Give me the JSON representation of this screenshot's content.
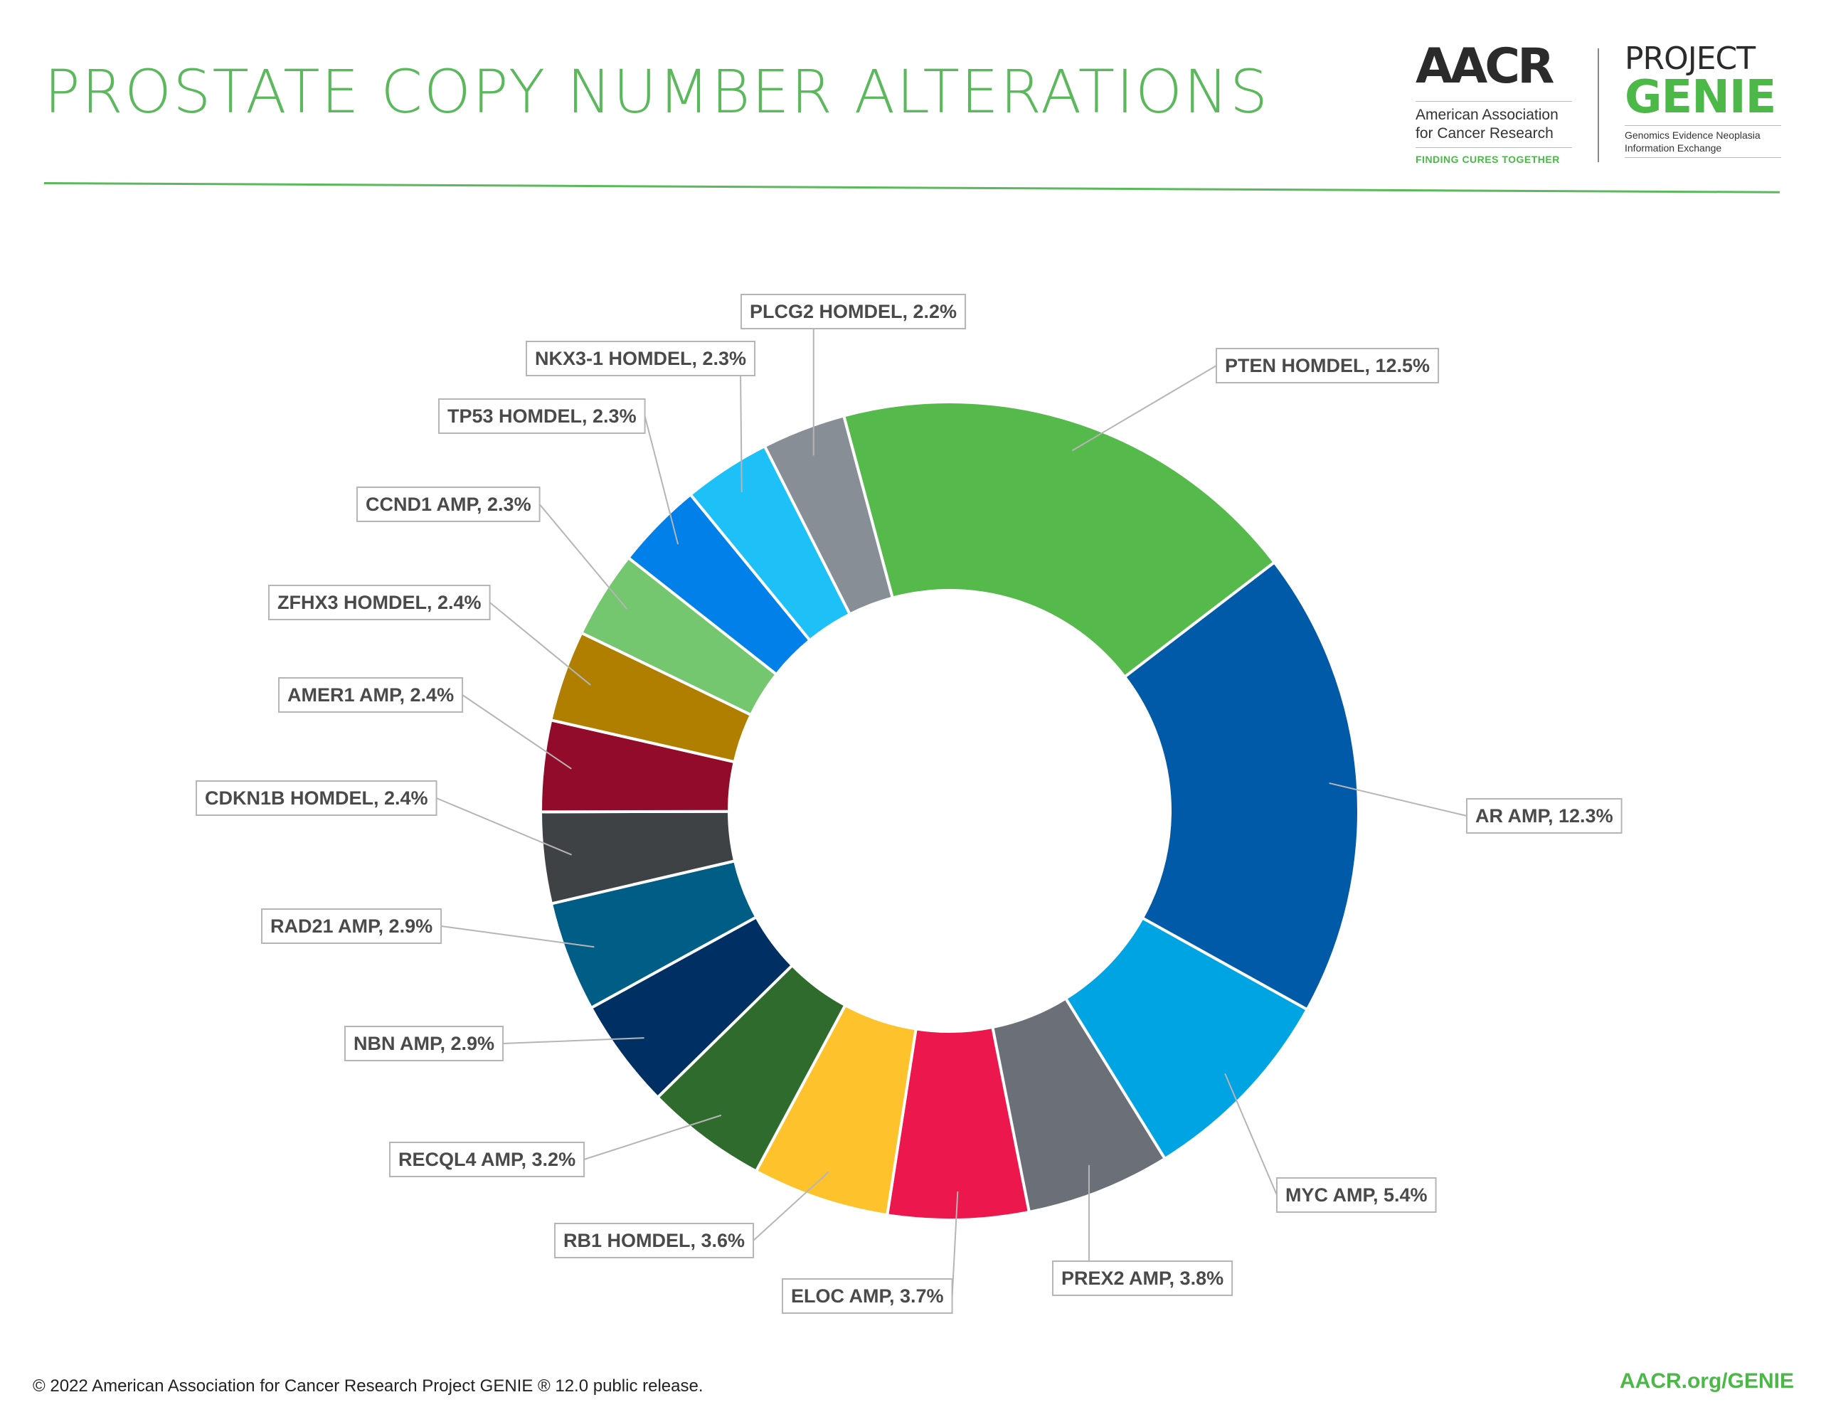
{
  "title": "PROSTATE COPY NUMBER ALTERATIONS",
  "logos": {
    "aacr": {
      "mark": "AACR",
      "name_line1": "American Association",
      "name_line2": "for Cancer Research",
      "tagline": "FINDING CURES TOGETHER"
    },
    "genie": {
      "project": "PROJECT",
      "word": "GENIE",
      "sub_line1": "Genomics Evidence Neoplasia",
      "sub_line2": "Information Exchange"
    }
  },
  "footer": {
    "copyright": "© 2022 American Association for Cancer Research Project GENIE ® 12.0 public release.",
    "link": "AACR.org/GENIE"
  },
  "chart_data": {
    "type": "pie",
    "donut": true,
    "title": "PROSTATE COPY NUMBER ALTERATIONS",
    "slices": [
      {
        "label": "PTEN HOMDEL, 12.5%",
        "value": 12.5,
        "color": "#55b94c"
      },
      {
        "label": "AR AMP, 12.3%",
        "value": 12.3,
        "color": "#005aa7"
      },
      {
        "label": "MYC AMP, 5.4%",
        "value": 5.4,
        "color": "#00a4e2"
      },
      {
        "label": "PREX2 AMP, 3.8%",
        "value": 3.8,
        "color": "#6b7078"
      },
      {
        "label": "ELOC AMP, 3.7%",
        "value": 3.7,
        "color": "#ec174c"
      },
      {
        "label": "RB1 HOMDEL, 3.6%",
        "value": 3.6,
        "color": "#fdc22c"
      },
      {
        "label": "RECQL4 AMP, 3.2%",
        "value": 3.2,
        "color": "#2e6b2c"
      },
      {
        "label": "NBN AMP, 2.9%",
        "value": 2.9,
        "color": "#002f63"
      },
      {
        "label": "RAD21 AMP, 2.9%",
        "value": 2.9,
        "color": "#005e86"
      },
      {
        "label": "CDKN1B HOMDEL, 2.4%",
        "value": 2.4,
        "color": "#3f4245"
      },
      {
        "label": "AMER1 AMP, 2.4%",
        "value": 2.4,
        "color": "#930b2a"
      },
      {
        "label": "ZFHX3 HOMDEL, 2.4%",
        "value": 2.4,
        "color": "#b07f00"
      },
      {
        "label": "CCND1 AMP, 2.3%",
        "value": 2.3,
        "color": "#74c66f"
      },
      {
        "label": "TP53 HOMDEL, 2.3%",
        "value": 2.3,
        "color": "#0280ea"
      },
      {
        "label": "NKX3-1 HOMDEL, 2.3%",
        "value": 2.3,
        "color": "#1ec0f8"
      },
      {
        "label": "PLCG2 HOMDEL, 2.2%",
        "value": 2.2,
        "color": "#878e96"
      }
    ]
  }
}
